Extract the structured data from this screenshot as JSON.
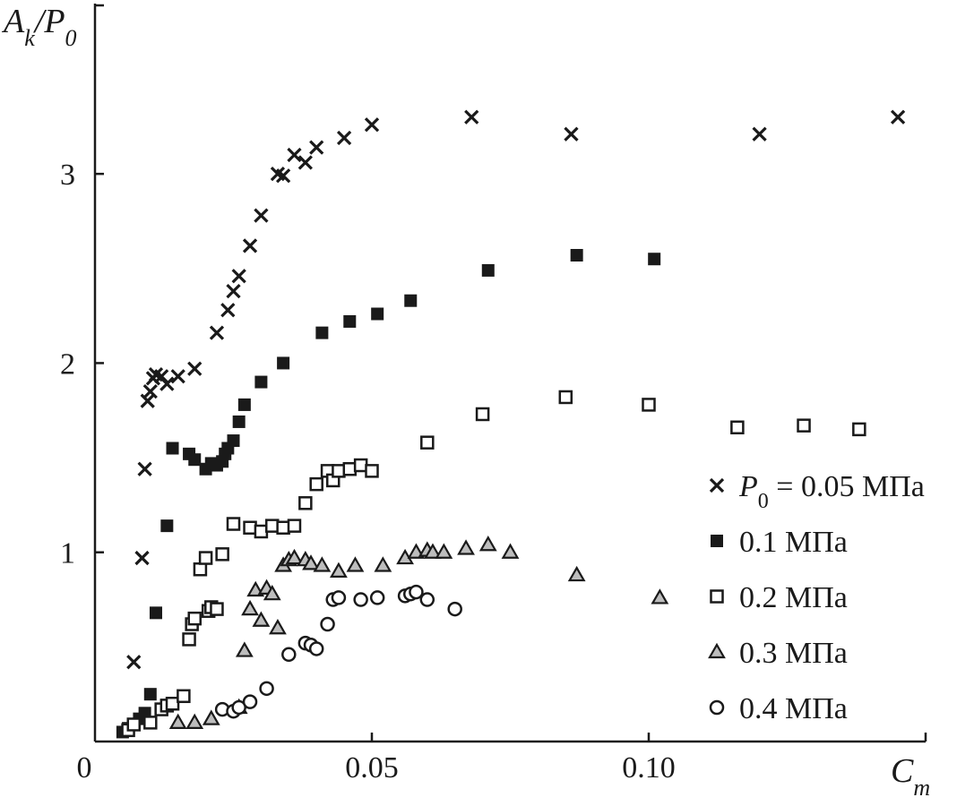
{
  "chart_data": {
    "type": "scatter",
    "title": "",
    "ylabel": "A_k/P_0",
    "xlabel": "C_m",
    "xlim": [
      0,
      0.15
    ],
    "ylim": [
      0,
      3.9
    ],
    "x_ticks": [
      "0",
      "0.05",
      "0.10"
    ],
    "x_tick_values": [
      0,
      0.05,
      0.1
    ],
    "y_ticks": [
      "1",
      "2",
      "3"
    ],
    "y_tick_values": [
      1,
      2,
      3
    ],
    "grid": false,
    "legend_position": "right",
    "series": [
      {
        "name": "P_0 = 0.05 МПа",
        "marker": "cross",
        "points": [
          [
            0.007,
            0.42
          ],
          [
            0.0085,
            0.97
          ],
          [
            0.009,
            1.44
          ],
          [
            0.0095,
            1.8
          ],
          [
            0.01,
            1.85
          ],
          [
            0.0105,
            1.92
          ],
          [
            0.011,
            1.94
          ],
          [
            0.012,
            1.93
          ],
          [
            0.013,
            1.89
          ],
          [
            0.015,
            1.93
          ],
          [
            0.018,
            1.97
          ],
          [
            0.022,
            2.16
          ],
          [
            0.024,
            2.28
          ],
          [
            0.025,
            2.38
          ],
          [
            0.026,
            2.46
          ],
          [
            0.028,
            2.62
          ],
          [
            0.03,
            2.78
          ],
          [
            0.033,
            3.0
          ],
          [
            0.034,
            2.99
          ],
          [
            0.036,
            3.1
          ],
          [
            0.038,
            3.06
          ],
          [
            0.04,
            3.14
          ],
          [
            0.045,
            3.19
          ],
          [
            0.05,
            3.26
          ],
          [
            0.068,
            3.3
          ],
          [
            0.086,
            3.21
          ],
          [
            0.12,
            3.21
          ],
          [
            0.145,
            3.3
          ]
        ]
      },
      {
        "name": "0.1 МПа",
        "marker": "filled-square",
        "points": [
          [
            0.005,
            0.05
          ],
          [
            0.006,
            0.07
          ],
          [
            0.007,
            0.09
          ],
          [
            0.008,
            0.12
          ],
          [
            0.009,
            0.15
          ],
          [
            0.01,
            0.25
          ],
          [
            0.011,
            0.68
          ],
          [
            0.013,
            1.14
          ],
          [
            0.014,
            1.55
          ],
          [
            0.017,
            1.52
          ],
          [
            0.018,
            1.49
          ],
          [
            0.02,
            1.44
          ],
          [
            0.021,
            1.47
          ],
          [
            0.022,
            1.46
          ],
          [
            0.023,
            1.48
          ],
          [
            0.0235,
            1.52
          ],
          [
            0.024,
            1.55
          ],
          [
            0.025,
            1.59
          ],
          [
            0.026,
            1.69
          ],
          [
            0.027,
            1.78
          ],
          [
            0.03,
            1.9
          ],
          [
            0.034,
            2.0
          ],
          [
            0.041,
            2.16
          ],
          [
            0.046,
            2.22
          ],
          [
            0.051,
            2.26
          ],
          [
            0.057,
            2.33
          ],
          [
            0.071,
            2.49
          ],
          [
            0.087,
            2.57
          ],
          [
            0.101,
            2.55
          ]
        ]
      },
      {
        "name": "0.2 МПа",
        "marker": "open-square",
        "points": [
          [
            0.006,
            0.06
          ],
          [
            0.007,
            0.09
          ],
          [
            0.01,
            0.1
          ],
          [
            0.012,
            0.17
          ],
          [
            0.013,
            0.19
          ],
          [
            0.014,
            0.2
          ],
          [
            0.016,
            0.24
          ],
          [
            0.017,
            0.54
          ],
          [
            0.0175,
            0.62
          ],
          [
            0.018,
            0.65
          ],
          [
            0.019,
            0.91
          ],
          [
            0.02,
            0.97
          ],
          [
            0.0205,
            0.69
          ],
          [
            0.021,
            0.71
          ],
          [
            0.022,
            0.7
          ],
          [
            0.023,
            0.99
          ],
          [
            0.025,
            1.15
          ],
          [
            0.028,
            1.13
          ],
          [
            0.03,
            1.11
          ],
          [
            0.032,
            1.14
          ],
          [
            0.034,
            1.13
          ],
          [
            0.036,
            1.14
          ],
          [
            0.038,
            1.26
          ],
          [
            0.04,
            1.36
          ],
          [
            0.042,
            1.43
          ],
          [
            0.043,
            1.38
          ],
          [
            0.044,
            1.43
          ],
          [
            0.046,
            1.44
          ],
          [
            0.048,
            1.46
          ],
          [
            0.05,
            1.43
          ],
          [
            0.06,
            1.58
          ],
          [
            0.07,
            1.73
          ],
          [
            0.085,
            1.82
          ],
          [
            0.1,
            1.78
          ],
          [
            0.116,
            1.66
          ],
          [
            0.128,
            1.67
          ],
          [
            0.138,
            1.65
          ]
        ]
      },
      {
        "name": "0.3 МПа",
        "marker": "triangle",
        "points": [
          [
            0.015,
            0.1
          ],
          [
            0.018,
            0.1
          ],
          [
            0.021,
            0.12
          ],
          [
            0.026,
            0.18
          ],
          [
            0.027,
            0.48
          ],
          [
            0.028,
            0.7
          ],
          [
            0.029,
            0.8
          ],
          [
            0.03,
            0.64
          ],
          [
            0.031,
            0.81
          ],
          [
            0.032,
            0.78
          ],
          [
            0.033,
            0.6
          ],
          [
            0.034,
            0.93
          ],
          [
            0.035,
            0.96
          ],
          [
            0.036,
            0.97
          ],
          [
            0.038,
            0.96
          ],
          [
            0.039,
            0.94
          ],
          [
            0.041,
            0.93
          ],
          [
            0.044,
            0.9
          ],
          [
            0.047,
            0.93
          ],
          [
            0.052,
            0.93
          ],
          [
            0.056,
            0.97
          ],
          [
            0.058,
            1.0
          ],
          [
            0.06,
            1.01
          ],
          [
            0.061,
            1.0
          ],
          [
            0.063,
            1.0
          ],
          [
            0.067,
            1.02
          ],
          [
            0.071,
            1.04
          ],
          [
            0.075,
            1.0
          ],
          [
            0.087,
            0.88
          ],
          [
            0.102,
            0.76
          ]
        ]
      },
      {
        "name": "0.4 МПа",
        "marker": "open-circle",
        "points": [
          [
            0.023,
            0.17
          ],
          [
            0.025,
            0.16
          ],
          [
            0.026,
            0.18
          ],
          [
            0.028,
            0.21
          ],
          [
            0.031,
            0.28
          ],
          [
            0.035,
            0.46
          ],
          [
            0.038,
            0.52
          ],
          [
            0.039,
            0.51
          ],
          [
            0.04,
            0.49
          ],
          [
            0.042,
            0.62
          ],
          [
            0.043,
            0.75
          ],
          [
            0.044,
            0.76
          ],
          [
            0.048,
            0.75
          ],
          [
            0.051,
            0.76
          ],
          [
            0.056,
            0.77
          ],
          [
            0.057,
            0.78
          ],
          [
            0.058,
            0.79
          ],
          [
            0.06,
            0.75
          ],
          [
            0.065,
            0.7
          ]
        ]
      }
    ]
  }
}
